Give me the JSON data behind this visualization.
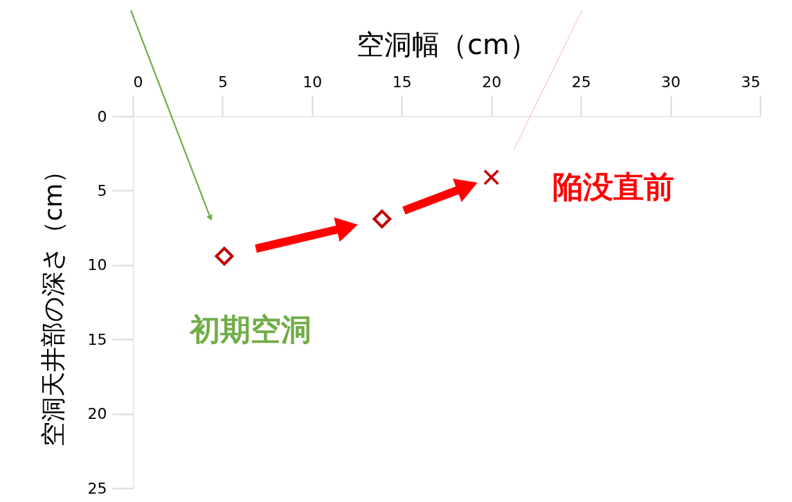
{
  "chart_data": {
    "type": "scatter",
    "xlabel": "空洞幅（cm）",
    "ylabel": "空洞天井部の深さ（cm）",
    "series": [
      {
        "color": "#c00000",
        "marker": "diamond",
        "x": [
          5.1,
          13.9
        ],
        "values": [
          9.4,
          6.9
        ]
      },
      {
        "color": "#c00000",
        "marker": "cross",
        "x": [
          20.0
        ],
        "values": [
          4.1
        ]
      }
    ],
    "xlim": [
      0,
      35
    ],
    "xticks": [
      0,
      5,
      10,
      15,
      20,
      25,
      30,
      35
    ],
    "ylim": [
      25,
      0
    ],
    "yticks": [
      0,
      5,
      10,
      15,
      20,
      25
    ],
    "annotations": [
      {
        "text": "初期空洞",
        "x": 5.1,
        "y": 9.4
      },
      {
        "text": "陥没直前",
        "x": 20.0,
        "y": 4.1
      }
    ]
  }
}
